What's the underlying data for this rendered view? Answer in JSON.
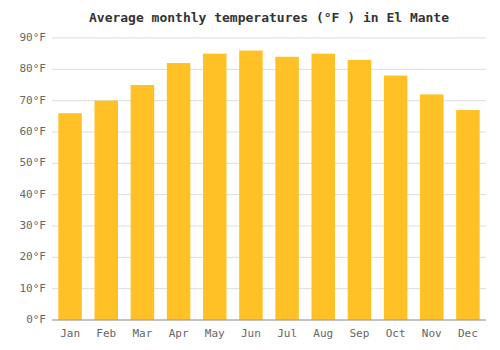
{
  "chart_data": {
    "type": "bar",
    "title": "Average monthly temperatures (°F ) in El Mante",
    "categories": [
      "Jan",
      "Feb",
      "Mar",
      "Apr",
      "May",
      "Jun",
      "Jul",
      "Aug",
      "Sep",
      "Oct",
      "Nov",
      "Dec"
    ],
    "values": [
      66,
      70,
      75,
      82,
      85,
      86,
      84,
      85,
      83,
      78,
      72,
      67
    ],
    "color": "#FFC125",
    "ylim": [
      0,
      90
    ],
    "yticks": [
      {
        "value": 0,
        "label": "0°F"
      },
      {
        "value": 10,
        "label": "10°F"
      },
      {
        "value": 20,
        "label": "20°F"
      },
      {
        "value": 30,
        "label": "30°F"
      },
      {
        "value": 40,
        "label": "40°F"
      },
      {
        "value": 50,
        "label": "50°F"
      },
      {
        "value": 60,
        "label": "60°F"
      },
      {
        "value": 70,
        "label": "70°F"
      },
      {
        "value": 80,
        "label": "80°F"
      },
      {
        "value": 90,
        "label": "90°F"
      }
    ],
    "grid": true
  }
}
